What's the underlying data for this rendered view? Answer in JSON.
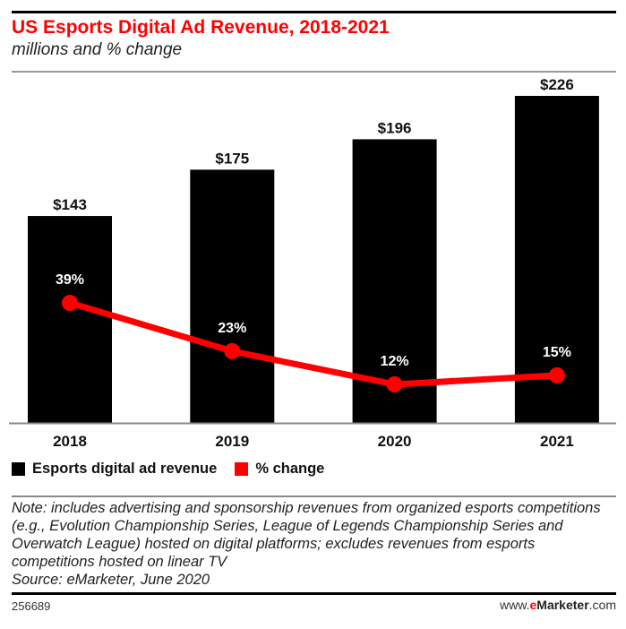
{
  "header": {
    "title": "US Esports Digital Ad Revenue, 2018-2021",
    "subtitle": "millions and % change"
  },
  "colors": {
    "title": "#ff0000",
    "bars": "#000000",
    "line": "#ff0000"
  },
  "chart_data": {
    "type": "bar",
    "title": "US Esports Digital Ad Revenue, 2018-2021",
    "subtitle": "millions and % change",
    "categories": [
      "2018",
      "2019",
      "2020",
      "2021"
    ],
    "series": [
      {
        "name": "Esports digital ad revenue",
        "type": "bar",
        "values": [
          143,
          175,
          196,
          226
        ],
        "labels": [
          "$143",
          "$175",
          "$196",
          "$226"
        ],
        "color": "#000000"
      },
      {
        "name": "% change",
        "type": "line",
        "values": [
          39,
          23,
          12,
          15
        ],
        "labels": [
          "39%",
          "23%",
          "12%",
          "15%"
        ],
        "color": "#ff0000"
      }
    ],
    "xlabel": "",
    "ylabel": "",
    "ylim": [
      0,
      226
    ],
    "grid": false,
    "legend_position": "bottom-left"
  },
  "legend": {
    "items": [
      {
        "label": "Esports digital ad revenue",
        "color": "#000000"
      },
      {
        "label": "% change",
        "color": "#ff0000"
      }
    ]
  },
  "footer": {
    "note": "Note: includes advertising and sponsorship revenues from organized esports competitions (e.g., Evolution Championship Series, League of Legends Championship Series and Overwatch League) hosted on digital platforms; excludes revenues from esports competitions hosted on linear TV",
    "source": "Source: eMarketer, June 2020",
    "chart_id": "256689",
    "brand_prefix": "www.",
    "brand_e": "e",
    "brand_name": "Marketer",
    "brand_suffix": ".com"
  }
}
